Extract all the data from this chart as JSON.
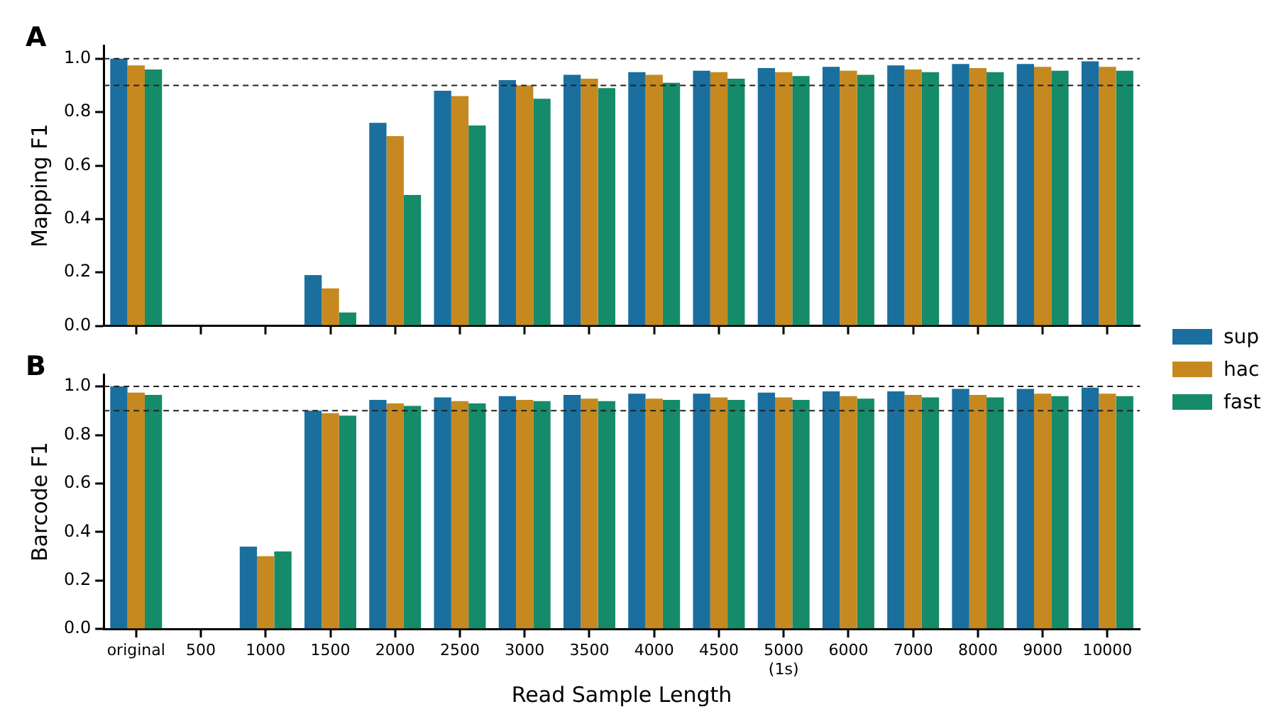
{
  "chart_data": [
    {
      "type": "bar",
      "annotations": [
        "A"
      ],
      "ylabel": "Mapping F1",
      "grid": false,
      "tick_labels": "y",
      "categories": [
        null,
        null,
        null,
        null,
        null,
        null,
        null,
        null,
        null,
        null,
        null,
        null,
        null,
        null,
        null,
        null
      ],
      "ylim": [
        0,
        1.05
      ],
      "yticks": [
        {
          "value": 0,
          "label": "0.0"
        },
        {
          "value": 0.2,
          "label": "0.2"
        },
        {
          "value": 0.4,
          "label": "0.4"
        },
        {
          "value": 0.6,
          "label": "0.6"
        },
        {
          "value": 0.8,
          "label": "0.8"
        },
        {
          "value": 1,
          "label": "1.0"
        }
      ],
      "ref_lines": [
        {
          "axis": "y",
          "value": 1,
          "line_style": "dashed"
        },
        {
          "axis": "y",
          "value": 0.9,
          "line_style": "dashed"
        }
      ],
      "series": [
        {
          "color": "#1a6f9f",
          "values": [
            1.0,
            0,
            0,
            0.19,
            0.76,
            0.88,
            0.92,
            0.94,
            0.95,
            0.955,
            0.965,
            0.97,
            0.975,
            0.98,
            0.98,
            0.99
          ]
        },
        {
          "color": "#c58920",
          "values": [
            0.975,
            0,
            0,
            0.14,
            0.71,
            0.86,
            0.9,
            0.925,
            0.94,
            0.95,
            0.95,
            0.955,
            0.96,
            0.965,
            0.97,
            0.97
          ]
        },
        {
          "color": "#158b6a",
          "values": [
            0.96,
            0,
            0,
            0.05,
            0.49,
            0.75,
            0.85,
            0.89,
            0.91,
            0.925,
            0.935,
            0.94,
            0.95,
            0.95,
            0.955,
            0.955
          ]
        }
      ]
    },
    {
      "type": "bar",
      "annotations": [
        "B"
      ],
      "ylabel": "Barcode F1",
      "xlabel": "Read Sample Length",
      "grid": false,
      "legend": "top right",
      "categories": [
        "original",
        "500",
        "1000",
        "1500",
        "2000",
        "2500",
        "3000",
        "3500",
        "4000",
        "4500",
        "5000 (1s)",
        "6000",
        "7000",
        "8000",
        "9000",
        "10000"
      ],
      "ylim": [
        0,
        1.05
      ],
      "yticks": [
        {
          "value": 0,
          "label": "0.0"
        },
        {
          "value": 0.2,
          "label": "0.2"
        },
        {
          "value": 0.4,
          "label": "0.4"
        },
        {
          "value": 0.6,
          "label": "0.6"
        },
        {
          "value": 0.8,
          "label": "0.8"
        },
        {
          "value": 1,
          "label": "1.0"
        }
      ],
      "ref_lines": [
        {
          "axis": "y",
          "value": 1,
          "line_style": "dashed"
        },
        {
          "axis": "y",
          "value": 0.9,
          "line_style": "dashed"
        }
      ],
      "series": [
        {
          "name": "sup",
          "color": "#1a6f9f",
          "values": [
            1.0,
            0,
            0.34,
            0.9,
            0.945,
            0.955,
            0.96,
            0.965,
            0.97,
            0.97,
            0.975,
            0.98,
            0.98,
            0.99,
            0.99,
            0.995
          ]
        },
        {
          "name": "hac",
          "color": "#c58920",
          "values": [
            0.975,
            0,
            0.3,
            0.89,
            0.93,
            0.94,
            0.945,
            0.95,
            0.95,
            0.955,
            0.955,
            0.96,
            0.965,
            0.965,
            0.97,
            0.97
          ]
        },
        {
          "name": "fast",
          "color": "#158b6a",
          "values": [
            0.965,
            0,
            0.32,
            0.88,
            0.92,
            0.93,
            0.94,
            0.94,
            0.945,
            0.945,
            0.945,
            0.95,
            0.955,
            0.955,
            0.96,
            0.96
          ]
        }
      ]
    }
  ]
}
